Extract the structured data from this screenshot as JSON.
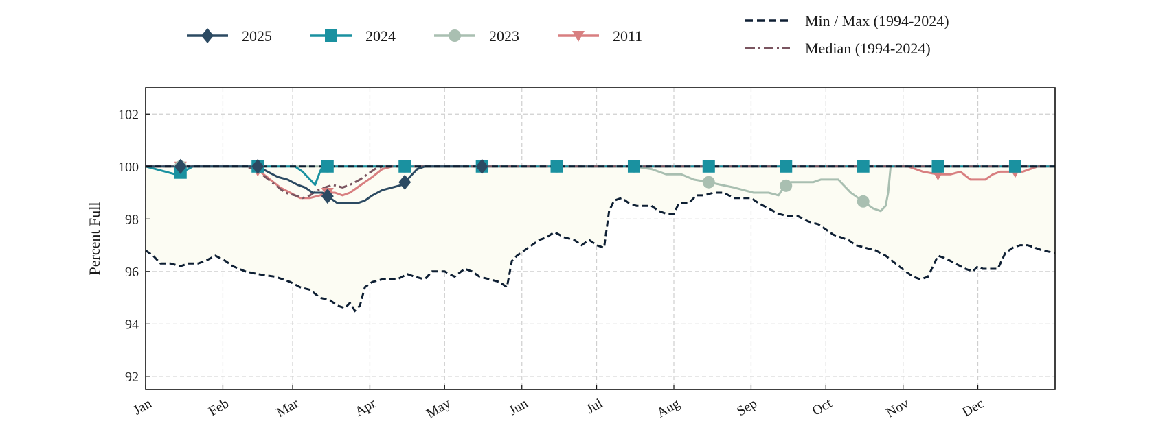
{
  "chart_data": {
    "type": "line",
    "title": "",
    "xlabel": "",
    "ylabel": "Percent Full",
    "ylim": [
      91.5,
      103
    ],
    "xlim": [
      0,
      365
    ],
    "grid": true,
    "legend": "top",
    "month_ticks": [
      "Jan",
      "Feb",
      "Mar",
      "Apr",
      "May",
      "Jun",
      "Jul",
      "Aug",
      "Sep",
      "Oct",
      "Nov",
      "Dec"
    ],
    "month_starts": [
      0,
      31,
      59,
      90,
      120,
      151,
      181,
      212,
      243,
      273,
      304,
      334
    ],
    "yticks": [
      92,
      94,
      96,
      98,
      100,
      102
    ],
    "fill_color": "#fcfcf3",
    "envelope": {
      "name": "Min / Max (1994-2024)",
      "color": "#0e1f33",
      "max": [
        [
          0,
          100
        ],
        [
          365,
          100
        ]
      ],
      "min": [
        [
          0,
          96.8
        ],
        [
          3,
          96.6
        ],
        [
          6,
          96.3
        ],
        [
          10,
          96.3
        ],
        [
          14,
          96.2
        ],
        [
          17,
          96.3
        ],
        [
          21,
          96.3
        ],
        [
          24,
          96.4
        ],
        [
          28,
          96.6
        ],
        [
          32,
          96.4
        ],
        [
          35,
          96.2
        ],
        [
          40,
          96.0
        ],
        [
          45,
          95.9
        ],
        [
          52,
          95.8
        ],
        [
          58,
          95.6
        ],
        [
          62,
          95.4
        ],
        [
          66,
          95.3
        ],
        [
          70,
          95.0
        ],
        [
          74,
          94.9
        ],
        [
          77,
          94.7
        ],
        [
          80,
          94.6
        ],
        [
          82,
          94.8
        ],
        [
          84,
          94.5
        ],
        [
          86,
          94.7
        ],
        [
          88,
          95.4
        ],
        [
          91,
          95.6
        ],
        [
          95,
          95.7
        ],
        [
          101,
          95.7
        ],
        [
          105,
          95.9
        ],
        [
          108,
          95.8
        ],
        [
          112,
          95.7
        ],
        [
          115,
          96.0
        ],
        [
          120,
          96.0
        ],
        [
          124,
          95.8
        ],
        [
          128,
          96.1
        ],
        [
          131,
          96.0
        ],
        [
          134,
          95.8
        ],
        [
          138,
          95.7
        ],
        [
          142,
          95.6
        ],
        [
          145,
          95.4
        ],
        [
          147,
          96.4
        ],
        [
          149,
          96.6
        ],
        [
          152,
          96.8
        ],
        [
          155,
          97.0
        ],
        [
          158,
          97.2
        ],
        [
          161,
          97.3
        ],
        [
          164,
          97.5
        ],
        [
          168,
          97.3
        ],
        [
          172,
          97.2
        ],
        [
          175,
          97.0
        ],
        [
          178,
          97.2
        ],
        [
          181,
          97.0
        ],
        [
          184,
          96.9
        ],
        [
          186,
          98.3
        ],
        [
          188,
          98.7
        ],
        [
          191,
          98.8
        ],
        [
          194,
          98.6
        ],
        [
          197,
          98.5
        ],
        [
          200,
          98.5
        ],
        [
          203,
          98.5
        ],
        [
          206,
          98.3
        ],
        [
          209,
          98.2
        ],
        [
          212,
          98.2
        ],
        [
          214,
          98.6
        ],
        [
          218,
          98.6
        ],
        [
          221,
          98.9
        ],
        [
          224,
          98.9
        ],
        [
          228,
          99.0
        ],
        [
          232,
          99.0
        ],
        [
          236,
          98.8
        ],
        [
          240,
          98.8
        ],
        [
          243,
          98.8
        ],
        [
          246,
          98.6
        ],
        [
          250,
          98.4
        ],
        [
          254,
          98.2
        ],
        [
          258,
          98.1
        ],
        [
          262,
          98.1
        ],
        [
          266,
          97.9
        ],
        [
          270,
          97.8
        ],
        [
          273,
          97.6
        ],
        [
          276,
          97.4
        ],
        [
          279,
          97.3
        ],
        [
          282,
          97.2
        ],
        [
          285,
          97.0
        ],
        [
          289,
          96.9
        ],
        [
          293,
          96.8
        ],
        [
          297,
          96.6
        ],
        [
          301,
          96.3
        ],
        [
          305,
          96.0
        ],
        [
          308,
          95.8
        ],
        [
          311,
          95.7
        ],
        [
          314,
          95.8
        ],
        [
          316,
          96.2
        ],
        [
          318,
          96.6
        ],
        [
          321,
          96.5
        ],
        [
          325,
          96.3
        ],
        [
          329,
          96.1
        ],
        [
          332,
          96.0
        ],
        [
          334,
          96.2
        ],
        [
          336,
          96.1
        ],
        [
          339,
          96.1
        ],
        [
          342,
          96.1
        ],
        [
          345,
          96.7
        ],
        [
          348,
          96.9
        ],
        [
          351,
          97.0
        ],
        [
          354,
          97.0
        ],
        [
          357,
          96.9
        ],
        [
          360,
          96.8
        ],
        [
          365,
          96.7
        ]
      ]
    },
    "series": [
      {
        "name": "Median (1994-2024)",
        "color": "#7a5560",
        "style": "dashdot",
        "points": [
          [
            0,
            100
          ],
          [
            40,
            100
          ],
          [
            44,
            99.9
          ],
          [
            48,
            99.6
          ],
          [
            52,
            99.3
          ],
          [
            56,
            99.0
          ],
          [
            60,
            98.9
          ],
          [
            63,
            98.8
          ],
          [
            66,
            98.9
          ],
          [
            69,
            99.1
          ],
          [
            72,
            99.2
          ],
          [
            75,
            99.3
          ],
          [
            79,
            99.2
          ],
          [
            82,
            99.3
          ],
          [
            86,
            99.5
          ],
          [
            89,
            99.7
          ],
          [
            92,
            99.9
          ],
          [
            95,
            100
          ],
          [
            365,
            100
          ]
        ]
      },
      {
        "name": "2011",
        "color": "#d87f80",
        "marker": "triangle-down",
        "points": [
          [
            0,
            100
          ],
          [
            42,
            100
          ],
          [
            46,
            99.8
          ],
          [
            50,
            99.5
          ],
          [
            54,
            99.2
          ],
          [
            58,
            99.0
          ],
          [
            62,
            98.8
          ],
          [
            66,
            98.8
          ],
          [
            70,
            98.9
          ],
          [
            73,
            99.0
          ],
          [
            76,
            99.0
          ],
          [
            79,
            98.9
          ],
          [
            82,
            99.0
          ],
          [
            85,
            99.2
          ],
          [
            88,
            99.4
          ],
          [
            91,
            99.6
          ],
          [
            95,
            99.9
          ],
          [
            99,
            100
          ],
          [
            306,
            100
          ],
          [
            309,
            99.9
          ],
          [
            312,
            99.8
          ],
          [
            318,
            99.7
          ],
          [
            323,
            99.7
          ],
          [
            327,
            99.8
          ],
          [
            331,
            99.5
          ],
          [
            337,
            99.5
          ],
          [
            340,
            99.7
          ],
          [
            343,
            99.8
          ],
          [
            347,
            99.8
          ],
          [
            352,
            99.8
          ],
          [
            355,
            99.9
          ],
          [
            358,
            100
          ],
          [
            365,
            100
          ]
        ],
        "marker_days": [
          14,
          45,
          73,
          104,
          135,
          165,
          196,
          226,
          257,
          288,
          318,
          349
        ]
      },
      {
        "name": "2023",
        "color": "#a9bfb1",
        "marker": "circle",
        "points": [
          [
            0,
            100
          ],
          [
            196,
            100
          ],
          [
            203,
            99.9
          ],
          [
            209,
            99.7
          ],
          [
            215,
            99.7
          ],
          [
            220,
            99.5
          ],
          [
            226,
            99.4
          ],
          [
            231,
            99.3
          ],
          [
            236,
            99.2
          ],
          [
            240,
            99.1
          ],
          [
            244,
            99.0
          ],
          [
            250,
            99.0
          ],
          [
            254,
            98.9
          ],
          [
            256,
            99.2
          ],
          [
            259,
            99.4
          ],
          [
            263,
            99.4
          ],
          [
            268,
            99.4
          ],
          [
            271,
            99.5
          ],
          [
            278,
            99.5
          ],
          [
            280,
            99.3
          ],
          [
            283,
            99.0
          ],
          [
            286,
            98.8
          ],
          [
            289,
            98.6
          ],
          [
            292,
            98.4
          ],
          [
            295,
            98.3
          ],
          [
            297,
            98.5
          ],
          [
            298,
            99.0
          ],
          [
            299,
            100
          ],
          [
            365,
            100
          ]
        ],
        "marker_days": [
          14,
          45,
          73,
          104,
          135,
          165,
          196,
          226,
          257,
          288,
          318,
          349
        ]
      },
      {
        "name": "2024",
        "color": "#1a91a0",
        "marker": "square",
        "points": [
          [
            0,
            100
          ],
          [
            4,
            99.9
          ],
          [
            8,
            99.8
          ],
          [
            12,
            99.7
          ],
          [
            15,
            99.8
          ],
          [
            19,
            100
          ],
          [
            60,
            100
          ],
          [
            63,
            99.8
          ],
          [
            66,
            99.5
          ],
          [
            68,
            99.3
          ],
          [
            70,
            99.8
          ],
          [
            71,
            100
          ],
          [
            365,
            100
          ]
        ],
        "marker_days": [
          14,
          45,
          73,
          104,
          135,
          165,
          196,
          226,
          257,
          288,
          318,
          349
        ]
      },
      {
        "name": "2025",
        "color": "#2c4a62",
        "marker": "diamond",
        "points": [
          [
            0,
            100
          ],
          [
            45,
            100
          ],
          [
            49,
            99.8
          ],
          [
            53,
            99.6
          ],
          [
            57,
            99.5
          ],
          [
            61,
            99.3
          ],
          [
            64,
            99.2
          ],
          [
            67,
            99.0
          ],
          [
            71,
            99.0
          ],
          [
            74,
            98.8
          ],
          [
            77,
            98.6
          ],
          [
            81,
            98.6
          ],
          [
            85,
            98.6
          ],
          [
            88,
            98.7
          ],
          [
            91,
            98.9
          ],
          [
            95,
            99.1
          ],
          [
            99,
            99.2
          ],
          [
            103,
            99.3
          ],
          [
            106,
            99.6
          ],
          [
            109,
            99.9
          ],
          [
            112,
            100
          ],
          [
            129,
            100
          ]
        ],
        "marker_days": [
          14,
          45,
          73,
          104,
          135
        ]
      }
    ]
  }
}
